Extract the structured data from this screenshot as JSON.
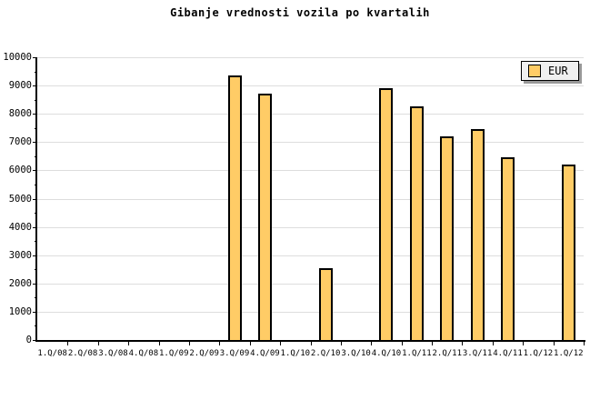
{
  "chart_data": {
    "type": "bar",
    "title": "Gibanje vrednosti vozila po kvartalih",
    "categories": [
      "1.Q/08",
      "2.Q/08",
      "3.Q/08",
      "4.Q/08",
      "1.Q/09",
      "2.Q/09",
      "3.Q/09",
      "4.Q/09",
      "1.Q/10",
      "2.Q/10",
      "3.Q/10",
      "4.Q/10",
      "1.Q/11",
      "2.Q/11",
      "3.Q/11",
      "4.Q/11",
      "1.Q/12",
      "1.Q/12"
    ],
    "series": [
      {
        "name": "EUR",
        "values": [
          null,
          null,
          null,
          null,
          null,
          null,
          9350,
          8700,
          null,
          2550,
          null,
          8900,
          8250,
          7200,
          7450,
          6450,
          null,
          6200
        ]
      }
    ],
    "xlabel": "",
    "ylabel": "",
    "ylim": [
      0,
      10000
    ],
    "y_major_step": 1000,
    "y_minor_step": 500,
    "y_tick_labels": [
      "0",
      "1000",
      "2000",
      "3000",
      "4000",
      "5000",
      "6000",
      "7000",
      "8000",
      "9000",
      "10000"
    ],
    "grid": "horizontal-major",
    "legend_position": "top-right",
    "colors": {
      "background": "#ffffff",
      "bar_fill": "#ffcc66",
      "bar_border": "#000000",
      "gridline": "#dddddd",
      "axis": "#000000",
      "text": "#000000",
      "legend_bg": "#f0f0f0",
      "legend_shadow": "#999999"
    }
  }
}
